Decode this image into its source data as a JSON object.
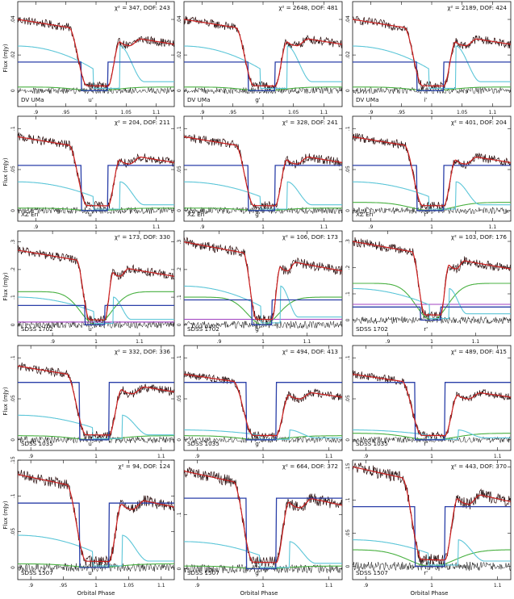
{
  "figure": {
    "xlabel": "Orbital Phase",
    "ylabel": "Flux (mJy)",
    "colors": {
      "data": "#111111",
      "data_fit_region": "#e03a3a",
      "model_total": "#cc1f1f",
      "white_dwarf": "#2a3fa8",
      "bright_spot": "#5cc6d8",
      "disc": "#48b040",
      "secondary": "#a040c0"
    }
  },
  "chart_data": [
    {
      "type": "line",
      "object": "DV UMa",
      "band": "u'",
      "fit": "χ² = 347, DOF: 243",
      "xlim": [
        0.87,
        1.13
      ],
      "ylim": [
        -0.009,
        0.05
      ],
      "yticks": [
        0,
        0.02,
        0.04
      ],
      "xticks": [
        0.9,
        0.95,
        1,
        1.05,
        1.1
      ],
      "eclipse_depth_flux": 0.04,
      "series": [
        {
          "name": "white dwarf",
          "level": 0.016
        },
        {
          "name": "bright spot",
          "peak": 0.025
        },
        {
          "name": "disc",
          "peak": 0.002
        }
      ]
    },
    {
      "type": "line",
      "object": "DV UMa",
      "band": "g'",
      "fit": "χ² = 2648, DOF: 481",
      "xlim": [
        0.87,
        1.13
      ],
      "ylim": [
        -0.009,
        0.05
      ],
      "yticks": [
        0,
        0.02,
        0.04
      ],
      "xticks": [
        0.9,
        0.95,
        1,
        1.05,
        1.1
      ],
      "eclipse_depth_flux": 0.04,
      "series": [
        {
          "name": "white dwarf",
          "level": 0.016
        },
        {
          "name": "bright spot",
          "peak": 0.025
        },
        {
          "name": "disc",
          "peak": 0.002
        }
      ]
    },
    {
      "type": "line",
      "object": "DV UMa",
      "band": "i'",
      "fit": "χ² = 2189, DOF: 424",
      "xlim": [
        0.87,
        1.13
      ],
      "ylim": [
        -0.009,
        0.05
      ],
      "yticks": [
        0,
        0.02,
        0.04
      ],
      "xticks": [
        0.9,
        0.95,
        1,
        1.05,
        1.1
      ],
      "eclipse_depth_flux": 0.04,
      "series": [
        {
          "name": "white dwarf",
          "level": 0.016
        },
        {
          "name": "bright spot",
          "peak": 0.025
        },
        {
          "name": "disc",
          "peak": 0.002
        }
      ]
    },
    {
      "type": "line",
      "object": "XZ Eri",
      "band": "u'",
      "fit": "χ² = 204, DOF: 211",
      "xlim": [
        0.87,
        1.13
      ],
      "ylim": [
        -0.013,
        0.115
      ],
      "yticks": [
        0,
        0.05,
        0.1
      ],
      "xticks": [
        0.9,
        1,
        1.1
      ],
      "eclipse_depth_flux": 0.09,
      "series": [
        {
          "name": "white dwarf",
          "level": 0.055
        },
        {
          "name": "bright spot",
          "peak": 0.035
        },
        {
          "name": "disc",
          "peak": 0.003
        }
      ]
    },
    {
      "type": "line",
      "object": "XZ Eri",
      "band": "g'",
      "fit": "χ² = 328, DOF: 241",
      "xlim": [
        0.87,
        1.13
      ],
      "ylim": [
        -0.013,
        0.115
      ],
      "yticks": [
        0,
        0.05,
        0.1
      ],
      "xticks": [
        0.9,
        1,
        1.1
      ],
      "eclipse_depth_flux": 0.09,
      "series": [
        {
          "name": "white dwarf",
          "level": 0.055
        },
        {
          "name": "bright spot",
          "peak": 0.035
        },
        {
          "name": "disc",
          "peak": 0.003
        }
      ]
    },
    {
      "type": "line",
      "object": "XZ Eri",
      "band": "r'",
      "fit": "χ² = 401, DOF: 204",
      "xlim": [
        0.87,
        1.13
      ],
      "ylim": [
        -0.013,
        0.115
      ],
      "yticks": [
        0,
        0.05,
        0.1
      ],
      "xticks": [
        0.9,
        1,
        1.1
      ],
      "eclipse_depth_flux": 0.09,
      "series": [
        {
          "name": "white dwarf",
          "level": 0.055
        },
        {
          "name": "bright spot",
          "peak": 0.035
        },
        {
          "name": "disc",
          "peak": 0.01
        }
      ]
    },
    {
      "type": "line",
      "object": "SDSS 1702",
      "band": "u'",
      "fit": "χ² = 173, DOF: 330",
      "xlim": [
        0.82,
        1.18
      ],
      "ylim": [
        -0.04,
        0.34
      ],
      "yticks": [
        0,
        0.1,
        0.2,
        0.3
      ],
      "xticks": [
        0.9,
        1,
        1.1
      ],
      "eclipse_depth_flux": 0.27,
      "series": [
        {
          "name": "white dwarf",
          "level": 0.07
        },
        {
          "name": "bright spot",
          "peak": 0.1
        },
        {
          "name": "disc",
          "peak": 0.12
        },
        {
          "name": "secondary",
          "peak": 0.01
        }
      ]
    },
    {
      "type": "line",
      "object": "SDSS 1702",
      "band": "g'",
      "fit": "χ² = 106, DOF: 173",
      "xlim": [
        0.82,
        1.18
      ],
      "ylim": [
        -0.04,
        0.34
      ],
      "yticks": [
        0,
        0.1,
        0.2,
        0.3
      ],
      "xticks": [
        0.9,
        1,
        1.1
      ],
      "eclipse_depth_flux": 0.3,
      "series": [
        {
          "name": "white dwarf",
          "level": 0.09
        },
        {
          "name": "bright spot",
          "peak": 0.14
        },
        {
          "name": "disc",
          "peak": 0.1
        },
        {
          "name": "secondary",
          "peak": 0.02
        }
      ]
    },
    {
      "type": "line",
      "object": "SDSS 1702",
      "band": "r'",
      "fit": "χ² = 103, DOF: 176",
      "xlim": [
        0.82,
        1.18
      ],
      "ylim": [
        -0.06,
        0.34
      ],
      "yticks": [
        0,
        0.1,
        0.2,
        0.3
      ],
      "xticks": [
        0.9,
        1,
        1.1
      ],
      "eclipse_depth_flux": 0.3,
      "series": [
        {
          "name": "white dwarf",
          "level": 0.05
        },
        {
          "name": "bright spot",
          "peak": 0.12
        },
        {
          "name": "disc",
          "peak": 0.14
        },
        {
          "name": "secondary",
          "peak": 0.06
        }
      ]
    },
    {
      "type": "line",
      "object": "SDSS 1035",
      "band": "u'",
      "fit": "χ² = 332, DOF: 336",
      "xlim": [
        0.88,
        1.12
      ],
      "ylim": [
        -0.013,
        0.115
      ],
      "yticks": [
        0,
        0.05,
        0.1
      ],
      "xticks": [
        0.9,
        1,
        1.1
      ],
      "eclipse_depth_flux": 0.09,
      "series": [
        {
          "name": "white dwarf",
          "level": 0.07
        },
        {
          "name": "bright spot",
          "peak": 0.03
        },
        {
          "name": "disc",
          "peak": 0.005
        }
      ]
    },
    {
      "type": "line",
      "object": "SDSS 1035",
      "band": "g'",
      "fit": "χ² = 494, DOF: 413",
      "xlim": [
        0.88,
        1.12
      ],
      "ylim": [
        -0.013,
        0.115
      ],
      "yticks": [
        0,
        0.05,
        0.1
      ],
      "xticks": [
        0.9,
        1,
        1.1
      ],
      "eclipse_depth_flux": 0.08,
      "series": [
        {
          "name": "white dwarf",
          "level": 0.07
        },
        {
          "name": "bright spot",
          "peak": 0.012
        },
        {
          "name": "disc",
          "peak": 0.005
        }
      ]
    },
    {
      "type": "line",
      "object": "SDSS 1035",
      "band": "r'",
      "fit": "χ² = 489, DOF: 415",
      "xlim": [
        0.88,
        1.12
      ],
      "ylim": [
        -0.013,
        0.115
      ],
      "yticks": [
        0,
        0.05,
        0.1
      ],
      "xticks": [
        0.9,
        1,
        1.1
      ],
      "eclipse_depth_flux": 0.08,
      "series": [
        {
          "name": "white dwarf",
          "level": 0.07
        },
        {
          "name": "bright spot",
          "peak": 0.012
        },
        {
          "name": "disc",
          "peak": 0.008
        }
      ]
    },
    {
      "type": "line",
      "object": "SDSS 1507",
      "band": "u'",
      "fit": "χ² = 94, DOF: 124",
      "xlim": [
        0.88,
        1.12
      ],
      "ylim": [
        -0.017,
        0.15
      ],
      "yticks": [
        0,
        0.05,
        0.1,
        0.15
      ],
      "xticks": [
        0.9,
        0.95,
        1,
        1.05,
        1.1
      ],
      "eclipse_depth_flux": 0.13,
      "series": [
        {
          "name": "white dwarf",
          "level": 0.09
        },
        {
          "name": "bright spot",
          "peak": 0.045
        },
        {
          "name": "disc",
          "peak": 0.005
        }
      ]
    },
    {
      "type": "line",
      "object": "SDSS 1507",
      "band": "g'",
      "fit": "χ² = 664, DOF: 372",
      "xlim": [
        0.88,
        1.12
      ],
      "ylim": [
        -0.02,
        0.2
      ],
      "yticks": [
        0,
        0.1
      ],
      "xticks": [
        0.9,
        1,
        1.1
      ],
      "eclipse_depth_flux": 0.18,
      "series": [
        {
          "name": "white dwarf",
          "level": 0.13
        },
        {
          "name": "bright spot",
          "peak": 0.05
        },
        {
          "name": "disc",
          "peak": 0.005
        }
      ]
    },
    {
      "type": "line",
      "object": "SDSS 1507",
      "band": "r'",
      "fit": "χ² = 443, DOF: 370",
      "xlim": [
        0.88,
        1.12
      ],
      "ylim": [
        -0.02,
        0.16
      ],
      "yticks": [
        0,
        0.05,
        0.1,
        0.15
      ],
      "xticks": [
        0.9,
        1,
        1.1
      ],
      "eclipse_depth_flux": 0.15,
      "series": [
        {
          "name": "white dwarf",
          "level": 0.09
        },
        {
          "name": "bright spot",
          "peak": 0.04
        },
        {
          "name": "disc",
          "peak": 0.025
        }
      ]
    }
  ]
}
